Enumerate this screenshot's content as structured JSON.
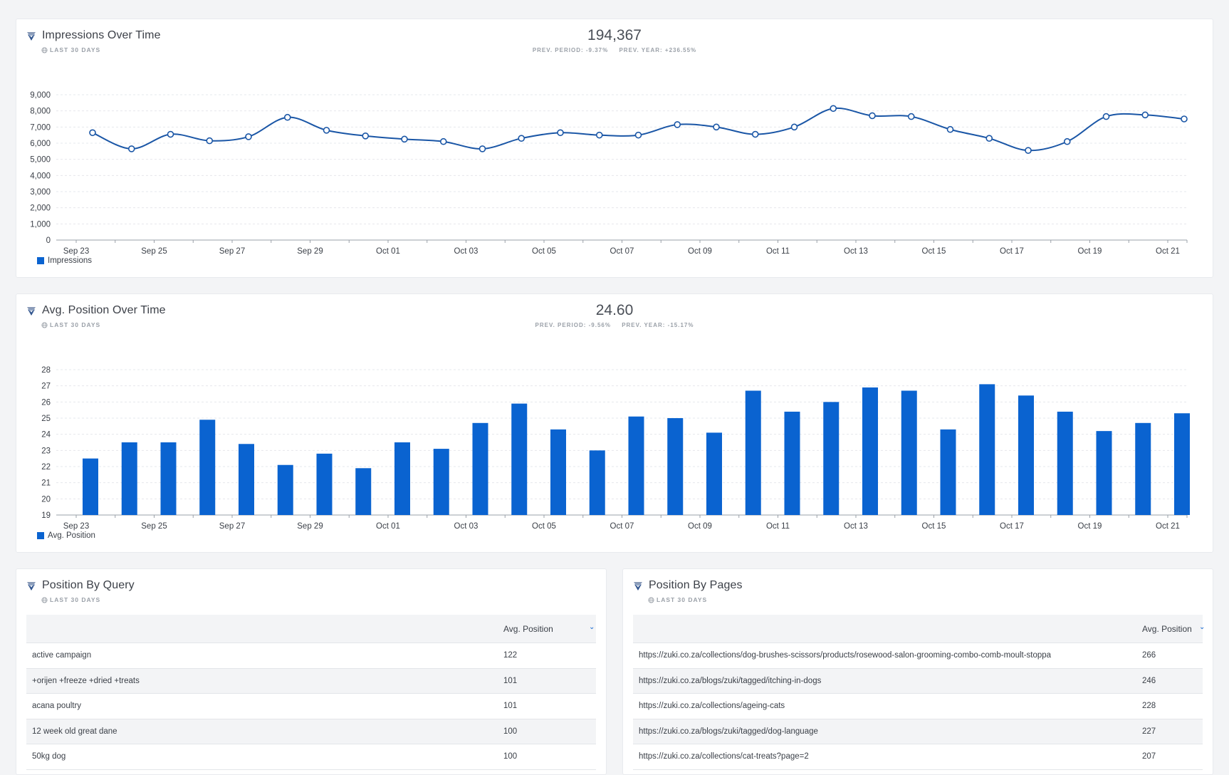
{
  "impressions": {
    "title": "Impressions Over Time",
    "period": "LAST 30 DAYS",
    "total": "194,367",
    "prev_period": "PREV. PERIOD: -9.37%",
    "prev_year": "PREV. YEAR: +236.55%",
    "legend": "Impressions"
  },
  "avg_position": {
    "title": "Avg. Position Over Time",
    "period": "LAST 30 DAYS",
    "total": "24.60",
    "prev_period": "PREV. PERIOD: -9.56%",
    "prev_year": "PREV. YEAR: -15.17%",
    "legend": "Avg. Position"
  },
  "chart_data": [
    {
      "type": "line",
      "x": [
        "Sep 23",
        "Sep 24",
        "Sep 25",
        "Sep 26",
        "Sep 27",
        "Sep 28",
        "Sep 29",
        "Sep 30",
        "Oct 01",
        "Oct 02",
        "Oct 03",
        "Oct 04",
        "Oct 05",
        "Oct 06",
        "Oct 07",
        "Oct 08",
        "Oct 09",
        "Oct 10",
        "Oct 11",
        "Oct 12",
        "Oct 13",
        "Oct 14",
        "Oct 15",
        "Oct 16",
        "Oct 17",
        "Oct 18",
        "Oct 19",
        "Oct 20",
        "Oct 21"
      ],
      "x_tick_labels": [
        "Sep 23",
        "Sep 25",
        "Sep 27",
        "Sep 29",
        "Oct 01",
        "Oct 03",
        "Oct 05",
        "Oct 07",
        "Oct 09",
        "Oct 11",
        "Oct 13",
        "Oct 15",
        "Oct 17",
        "Oct 19",
        "Oct 21"
      ],
      "series": [
        {
          "name": "Impressions",
          "values": [
            6650,
            5650,
            6550,
            6150,
            6400,
            7600,
            6800,
            6450,
            6250,
            6100,
            5650,
            6300,
            6650,
            6500,
            6500,
            7150,
            7000,
            6550,
            7000,
            8150,
            7700,
            7650,
            6850,
            6300,
            5550,
            6100,
            7650,
            7750,
            7500
          ]
        }
      ],
      "ylim": [
        0,
        9000
      ],
      "y_ticks": [
        "0",
        "1,000",
        "2,000",
        "3,000",
        "4,000",
        "5,000",
        "6,000",
        "7,000",
        "8,000",
        "9,000"
      ],
      "grid": true,
      "legend_position": "bottom-left",
      "color": "#1a56a6"
    },
    {
      "type": "bar",
      "categories": [
        "Sep 23",
        "Sep 24",
        "Sep 25",
        "Sep 26",
        "Sep 27",
        "Sep 28",
        "Sep 29",
        "Sep 30",
        "Oct 01",
        "Oct 02",
        "Oct 03",
        "Oct 04",
        "Oct 05",
        "Oct 06",
        "Oct 07",
        "Oct 08",
        "Oct 09",
        "Oct 10",
        "Oct 11",
        "Oct 12",
        "Oct 13",
        "Oct 14",
        "Oct 15",
        "Oct 16",
        "Oct 17",
        "Oct 18",
        "Oct 19",
        "Oct 20",
        "Oct 21"
      ],
      "x_tick_labels": [
        "Sep 23",
        "Sep 25",
        "Sep 27",
        "Sep 29",
        "Oct 01",
        "Oct 03",
        "Oct 05",
        "Oct 07",
        "Oct 09",
        "Oct 11",
        "Oct 13",
        "Oct 15",
        "Oct 17",
        "Oct 19",
        "Oct 21"
      ],
      "series": [
        {
          "name": "Avg. Position",
          "values": [
            22.5,
            23.5,
            23.5,
            24.9,
            23.4,
            22.1,
            22.8,
            21.9,
            23.5,
            23.1,
            24.7,
            25.9,
            24.3,
            23.0,
            25.1,
            25.0,
            24.1,
            26.7,
            25.4,
            26.0,
            26.9,
            26.7,
            24.3,
            27.1,
            26.4,
            25.4,
            24.2,
            24.7,
            25.3
          ]
        }
      ],
      "ylim": [
        19,
        28
      ],
      "y_ticks": [
        "19",
        "20",
        "21",
        "22",
        "23",
        "24",
        "25",
        "26",
        "27",
        "28"
      ],
      "grid": true,
      "legend_position": "bottom-left",
      "color": "#0a63d0"
    }
  ],
  "query_table": {
    "title": "Position By Query",
    "period": "LAST 30 DAYS",
    "col_label": "",
    "col_value": "Avg. Position",
    "rows": [
      {
        "label": "active campaign",
        "value": "122"
      },
      {
        "label": "+orijen +freeze +dried +treats",
        "value": "101"
      },
      {
        "label": "acana poultry",
        "value": "101"
      },
      {
        "label": "12 week old great dane",
        "value": "100"
      },
      {
        "label": "50kg dog",
        "value": "100"
      }
    ]
  },
  "pages_table": {
    "title": "Position By Pages",
    "period": "LAST 30 DAYS",
    "col_label": "",
    "col_value": "Avg. Position",
    "rows": [
      {
        "label": "https://zuki.co.za/collections/dog-brushes-scissors/products/rosewood-salon-grooming-combo-comb-moult-stoppa",
        "value": "266"
      },
      {
        "label": "https://zuki.co.za/blogs/zuki/tagged/itching-in-dogs",
        "value": "246"
      },
      {
        "label": "https://zuki.co.za/collections/ageing-cats",
        "value": "228"
      },
      {
        "label": "https://zuki.co.za/blogs/zuki/tagged/dog-language",
        "value": "227"
      },
      {
        "label": "https://zuki.co.za/collections/cat-treats?page=2",
        "value": "207"
      }
    ]
  }
}
